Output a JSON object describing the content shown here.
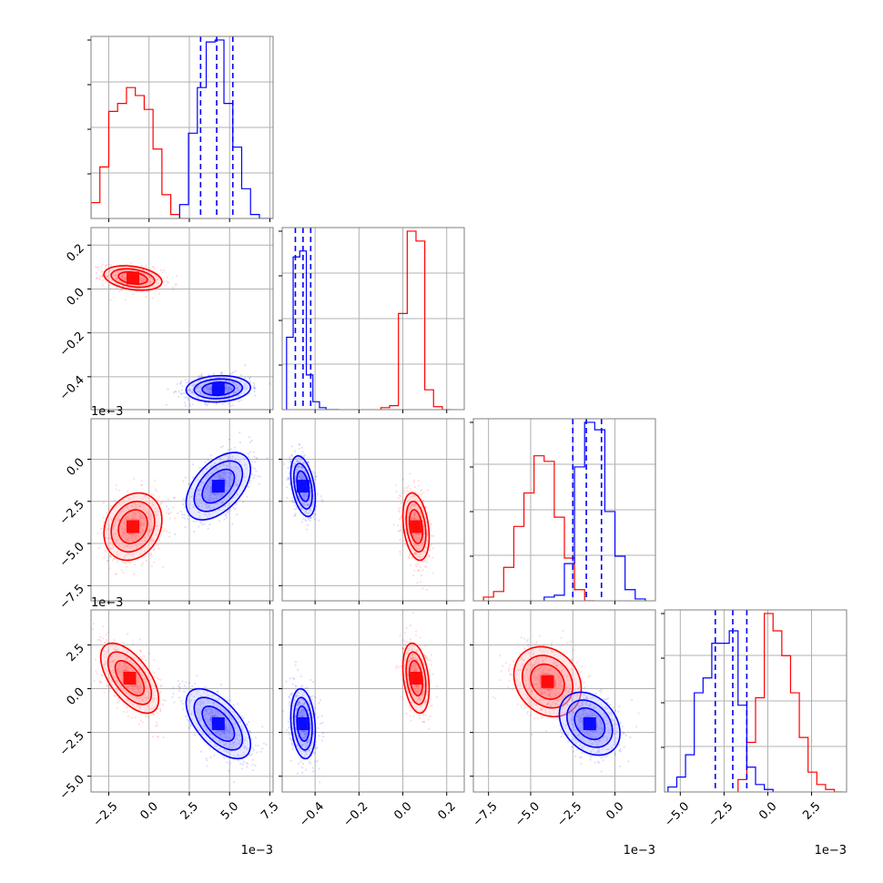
{
  "colors": {
    "red": "#ff0000",
    "blue": "#0000ff",
    "frame": "#7f7f7f",
    "grid": "#b0b0b0"
  },
  "chart_data": {
    "type": "corner",
    "n_params": 4,
    "grid": true,
    "series": [
      {
        "color": "#ff0000",
        "quantile_lines": false
      },
      {
        "color": "#0000ff",
        "quantile_lines": true
      }
    ],
    "offset_labels": {
      "p0": "1e−3",
      "p2": "1e−3",
      "p3": "1e−3"
    },
    "axes": [
      {
        "range": [
          -3.6,
          7.7
        ],
        "ticks": [
          -2.5,
          0.0,
          2.5,
          5.0,
          7.5
        ],
        "tick_labels": [
          "−2.5",
          "0.0",
          "2.5",
          "5.0",
          "7.5"
        ]
      },
      {
        "range": [
          -0.55,
          0.28
        ],
        "ticks": [
          -0.4,
          -0.2,
          0.0,
          0.2
        ],
        "tick_labels": [
          "−0.4",
          "−0.2",
          "0.0",
          "0.2"
        ]
      },
      {
        "range": [
          -8.4,
          2.4
        ],
        "ticks": [
          -7.5,
          -5.0,
          -2.5,
          0.0
        ],
        "tick_labels": [
          "−7.5",
          "−5.0",
          "−2.5",
          "0.0"
        ]
      },
      {
        "range": [
          -5.9,
          4.5
        ],
        "ticks": [
          -5.0,
          -2.5,
          0.0,
          2.5
        ],
        "tick_labels": [
          "−5.0",
          "−2.5",
          "0.0",
          "2.5"
        ]
      }
    ],
    "hist": [
      {
        "red": {
          "edges": [
            -3.6,
            -3.05,
            -2.5,
            -1.95,
            -1.4,
            -0.85,
            -0.3,
            0.25,
            0.8,
            1.35,
            1.9,
            2.45
          ],
          "counts": [
            8,
            26,
            54,
            58,
            66,
            62,
            55,
            35,
            12,
            2,
            0
          ]
        },
        "blue": {
          "edges": [
            1.9,
            2.45,
            3.0,
            3.55,
            4.1,
            4.65,
            5.2,
            5.75,
            6.3,
            6.85,
            7.4,
            7.7
          ],
          "counts": [
            7,
            43,
            66,
            89,
            90,
            58,
            36,
            15,
            2,
            0,
            0
          ]
        },
        "blue_quantiles": [
          3.2,
          4.2,
          5.2
        ]
      },
      {
        "red": {
          "edges": [
            -0.1,
            -0.06,
            -0.02,
            0.02,
            0.06,
            0.1,
            0.14,
            0.18,
            0.22
          ],
          "counts": [
            2,
            4,
            97,
            180,
            170,
            20,
            3,
            0
          ]
        },
        "blue": {
          "edges": [
            -0.53,
            -0.5,
            -0.47,
            -0.44,
            -0.41,
            -0.38,
            -0.35,
            -0.32,
            -0.29
          ],
          "counts": [
            73,
            154,
            160,
            35,
            8,
            2,
            0,
            0
          ]
        },
        "blue_quantiles": [
          -0.49,
          -0.455,
          -0.42
        ]
      },
      {
        "red": {
          "edges": [
            -7.8,
            -7.2,
            -6.6,
            -6.0,
            -5.4,
            -4.8,
            -4.2,
            -3.6,
            -3.0,
            -2.4,
            -1.8,
            -1.2
          ],
          "counts": [
            2,
            5,
            18,
            40,
            58,
            78,
            75,
            45,
            23,
            6,
            0
          ]
        },
        "blue": {
          "edges": [
            -4.2,
            -3.6,
            -3.0,
            -2.4,
            -1.8,
            -1.2,
            -0.6,
            0.0,
            0.6,
            1.2,
            1.8
          ],
          "counts": [
            2,
            3,
            20,
            72,
            96,
            92,
            48,
            24,
            6,
            1
          ]
        },
        "blue_quantiles": [
          -2.5,
          -1.7,
          -0.8
        ]
      },
      {
        "red": {
          "edges": [
            -1.7,
            -1.2,
            -0.7,
            -0.2,
            0.3,
            0.8,
            1.3,
            1.8,
            2.3,
            2.8,
            3.3,
            3.8,
            4.3
          ],
          "counts": [
            5,
            20,
            38,
            72,
            65,
            55,
            40,
            22,
            8,
            3,
            1,
            0
          ]
        },
        "blue": {
          "edges": [
            -5.7,
            -5.2,
            -4.7,
            -4.2,
            -3.7,
            -3.2,
            -2.7,
            -2.2,
            -1.7,
            -1.2,
            -0.7,
            -0.2,
            0.3
          ],
          "counts": [
            2,
            6,
            15,
            40,
            46,
            60,
            60,
            65,
            35,
            10,
            3,
            1
          ]
        },
        "blue_quantiles": [
          -3.0,
          -2.0,
          -1.2
        ]
      }
    ],
    "scatter_clusters": [
      {
        "row": 1,
        "col": 0,
        "red": {
          "mean": [
            -1.0,
            0.05
          ],
          "sd": [
            0.9,
            0.028
          ],
          "rho": -0.3
        },
        "blue": {
          "mean": [
            4.3,
            -0.455
          ],
          "sd": [
            1.0,
            0.03
          ],
          "rho": 0.1
        }
      },
      {
        "row": 2,
        "col": 0,
        "red": {
          "mean": [
            -1.0,
            -4.0
          ],
          "sd": [
            0.9,
            1.0
          ],
          "rho": 0.2
        },
        "blue": {
          "mean": [
            4.3,
            -1.6
          ],
          "sd": [
            1.0,
            1.0
          ],
          "rho": 0.5
        }
      },
      {
        "row": 2,
        "col": 1,
        "red": {
          "mean": [
            0.06,
            -4.0
          ],
          "sd": [
            0.03,
            1.0
          ],
          "rho": -0.3
        },
        "blue": {
          "mean": [
            -0.455,
            -1.6
          ],
          "sd": [
            0.028,
            0.9
          ],
          "rho": -0.4
        }
      },
      {
        "row": 3,
        "col": 0,
        "red": {
          "mean": [
            -1.2,
            0.6
          ],
          "sd": [
            0.9,
            1.0
          ],
          "rho": -0.6
        },
        "blue": {
          "mean": [
            4.3,
            -2.0
          ],
          "sd": [
            1.0,
            1.0
          ],
          "rho": -0.6
        }
      },
      {
        "row": 3,
        "col": 1,
        "red": {
          "mean": [
            0.06,
            0.6
          ],
          "sd": [
            0.03,
            1.0
          ],
          "rho": -0.3
        },
        "blue": {
          "mean": [
            -0.455,
            -2.0
          ],
          "sd": [
            0.028,
            1.0
          ],
          "rho": -0.2
        }
      },
      {
        "row": 3,
        "col": 2,
        "red": {
          "mean": [
            -4.0,
            0.4
          ],
          "sd": [
            1.0,
            1.0
          ],
          "rho": -0.2
        },
        "blue": {
          "mean": [
            -1.5,
            -2.0
          ],
          "sd": [
            0.9,
            0.9
          ],
          "rho": -0.3
        }
      }
    ]
  }
}
